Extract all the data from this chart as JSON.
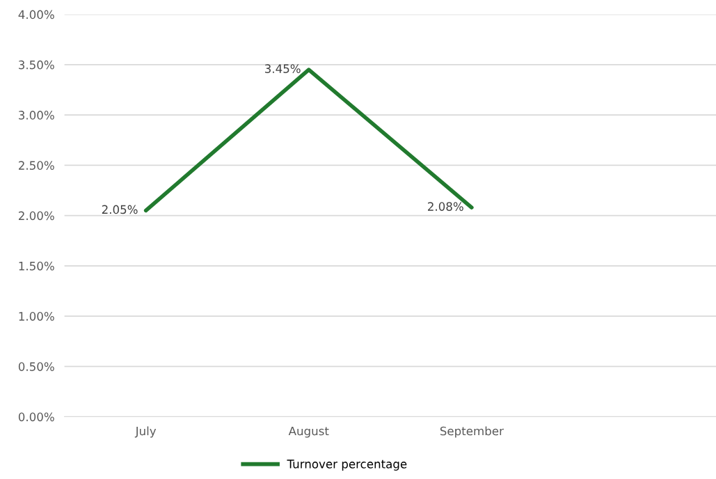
{
  "chart_data": {
    "type": "line",
    "categories": [
      "July",
      "August",
      "September",
      null
    ],
    "series": [
      {
        "name": "Turnover percentage",
        "color": "#217a2e",
        "values": [
          2.05,
          3.45,
          2.08,
          null
        ],
        "value_labels": [
          "2.05%",
          "3.45%",
          "2.08%",
          null
        ]
      }
    ],
    "ylim": [
      0,
      4
    ],
    "yticks": [
      {
        "value": 0,
        "label": "0.00%"
      },
      {
        "value": 0.5,
        "label": "0.50%"
      },
      {
        "value": 1,
        "label": "1.00%"
      },
      {
        "value": 1.5,
        "label": "1.50%"
      },
      {
        "value": 2,
        "label": "2.00%"
      },
      {
        "value": 2.5,
        "label": "2.50%"
      },
      {
        "value": 3,
        "label": "3.00%"
      },
      {
        "value": 3.5,
        "label": "3.50%"
      },
      {
        "value": 4,
        "label": "4.00%"
      }
    ],
    "grid": "y",
    "legend": "bottom",
    "marker": "none",
    "line_style": "solid"
  }
}
